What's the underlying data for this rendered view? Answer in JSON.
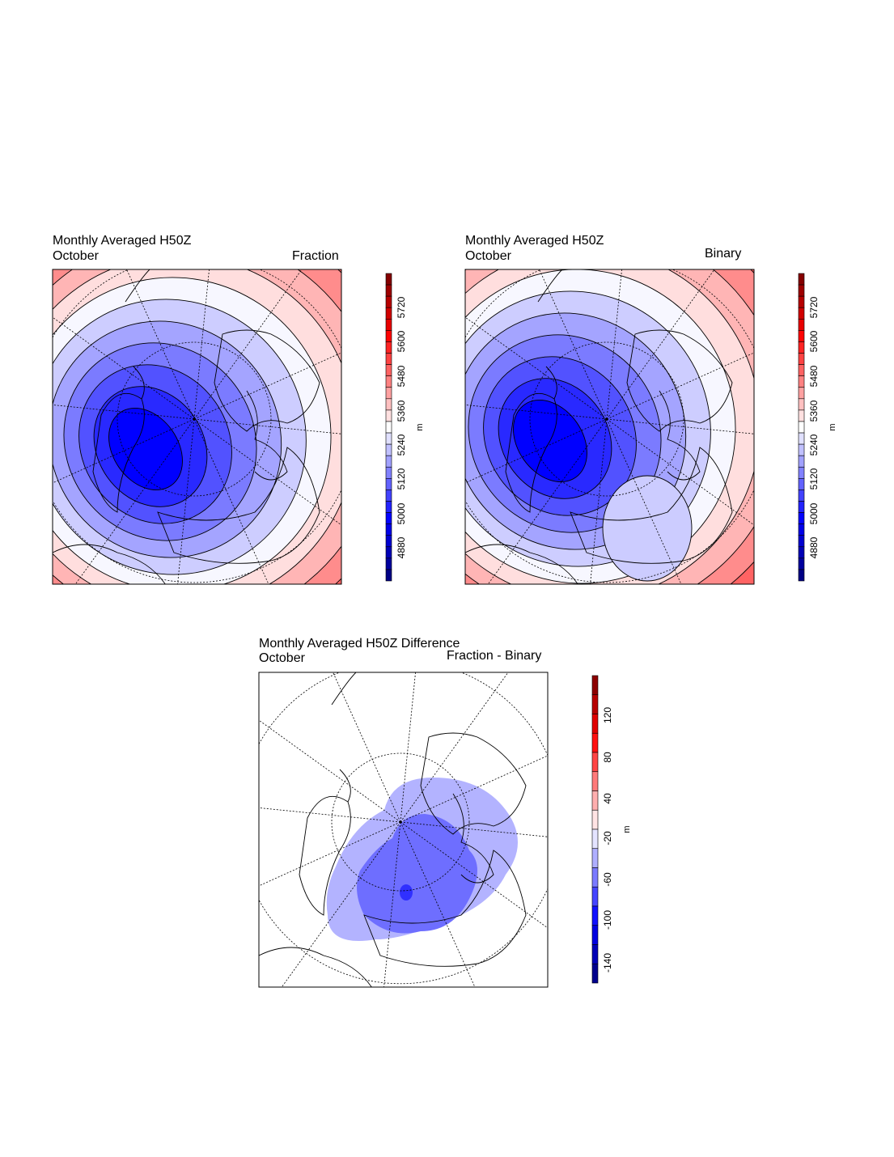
{
  "panels": [
    {
      "title": "Monthly Averaged H50Z",
      "subtitle": "October",
      "right_label": "Fraction",
      "units": "m",
      "colorbar": {
        "labels": [
          "5720",
          "5600",
          "5480",
          "5360",
          "5240",
          "5120",
          "5000",
          "4880"
        ]
      }
    },
    {
      "title": "Monthly Averaged H50Z",
      "subtitle": "October",
      "right_label": "Binary",
      "units": "m",
      "colorbar": {
        "labels": [
          "5720",
          "5600",
          "5480",
          "5360",
          "5240",
          "5120",
          "5000",
          "4880"
        ]
      }
    },
    {
      "title": "Monthly Averaged H50Z Difference",
      "subtitle": "October",
      "right_label": "Fraction - Binary",
      "units": "m",
      "colorbar": {
        "labels": [
          "120",
          "80",
          "40",
          "-20",
          "-60",
          "-100",
          "-140"
        ]
      }
    }
  ],
  "colors": {
    "high": "#e00000",
    "neutral": "#ffffff",
    "low": "#0000e0"
  },
  "chart_data": [
    {
      "type": "heatmap",
      "title": "Monthly Averaged H50Z",
      "subtitle": "October",
      "label": "Fraction",
      "units": "m",
      "projection": "polar stereographic (north pole)",
      "colorbar_ticks": [
        4880,
        5000,
        5120,
        5240,
        5360,
        5480,
        5600,
        5720
      ],
      "range": [
        4760,
        5840
      ]
    },
    {
      "type": "heatmap",
      "title": "Monthly Averaged H50Z",
      "subtitle": "October",
      "label": "Binary",
      "units": "m",
      "projection": "polar stereographic (north pole)",
      "colorbar_ticks": [
        4880,
        5000,
        5120,
        5240,
        5360,
        5480,
        5600,
        5720
      ],
      "range": [
        4760,
        5840
      ]
    },
    {
      "type": "heatmap",
      "title": "Monthly Averaged H50Z Difference",
      "subtitle": "October",
      "label": "Fraction - Binary",
      "units": "m",
      "projection": "polar stereographic (north pole)",
      "colorbar_ticks": [
        -140,
        -100,
        -60,
        -20,
        40,
        80,
        120
      ],
      "range": [
        -160,
        160
      ],
      "min_region_value_approx": -60
    }
  ]
}
